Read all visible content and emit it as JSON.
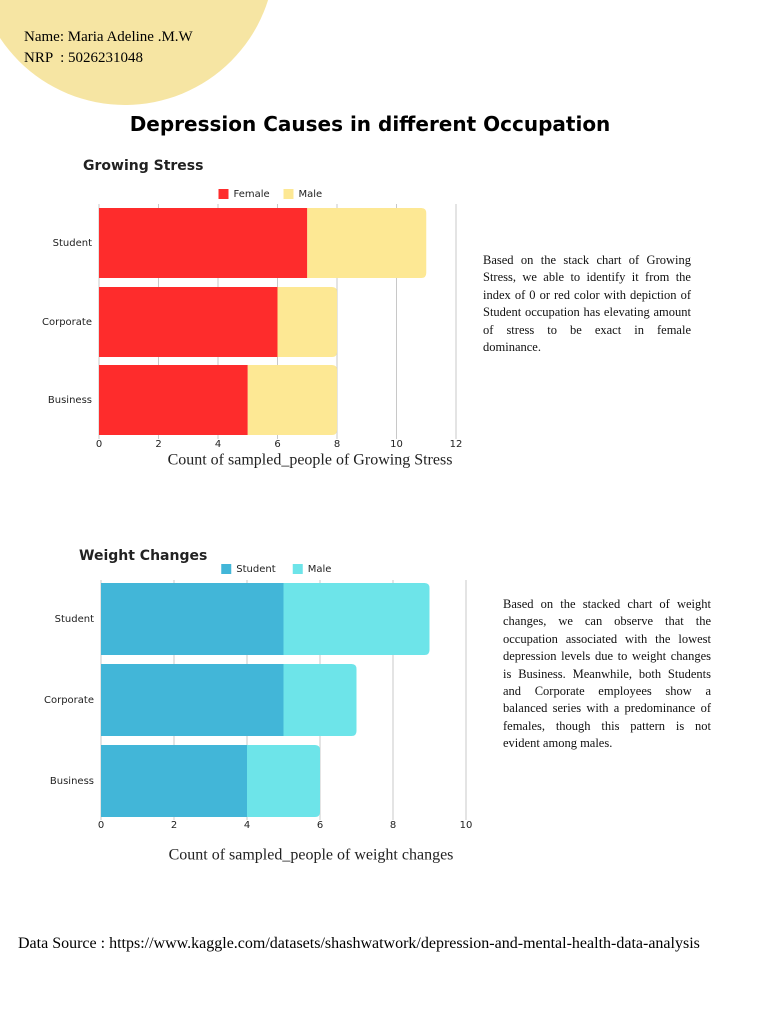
{
  "header": {
    "name": "Name: Maria Adeline .M.W",
    "nrp": "NRP  : 5026231048"
  },
  "title": "Depression Causes in different Occupation",
  "chart_data": [
    {
      "type": "bar",
      "orientation": "horizontal",
      "stacked": true,
      "title": "Growing Stress",
      "categories": [
        "Student",
        "Corporate",
        "Business"
      ],
      "series": [
        {
          "name": "Female",
          "color": "#fe2c2c",
          "values": [
            7,
            6,
            5
          ]
        },
        {
          "name": "Male",
          "color": "#fde894",
          "values": [
            4,
            2,
            3
          ]
        }
      ],
      "xlim": [
        0,
        12
      ],
      "xticks": [
        0,
        2,
        4,
        6,
        8,
        10,
        12
      ],
      "grid": true,
      "legend": "top",
      "xlabel": "Count of sampled_people of Growing Stress"
    },
    {
      "type": "bar",
      "orientation": "horizontal",
      "stacked": true,
      "title": "Weight Changes",
      "categories": [
        "Student",
        "Corporate",
        "Business"
      ],
      "series": [
        {
          "name": "Student",
          "color": "#42b6d8",
          "values": [
            5,
            5,
            4
          ]
        },
        {
          "name": "Male",
          "color": "#6de4e9",
          "values": [
            4,
            2,
            2
          ]
        }
      ],
      "xlim": [
        0,
        10
      ],
      "xticks": [
        0,
        2,
        4,
        6,
        8,
        10
      ],
      "grid": true,
      "legend": "top",
      "xlabel": "Count of sampled_people of weight changes"
    }
  ],
  "descriptions": [
    "Based on the stack chart of Growing Stress, we able to identify it  from the index of 0 or red color with depiction of Student occupation has elevating amount of stress to be exact in female dominance.",
    "Based on the stacked chart of weight changes, we can observe that the occupation associated with the lowest depression levels due to weight changes is Business. Meanwhile, both Students and Corporate employees show a balanced series with a predominance of females, though this pattern is not evident among males."
  ],
  "source": "Data Source : https://www.kaggle.com/datasets/shashwatwork/depression-and-mental-health-data-analysis"
}
